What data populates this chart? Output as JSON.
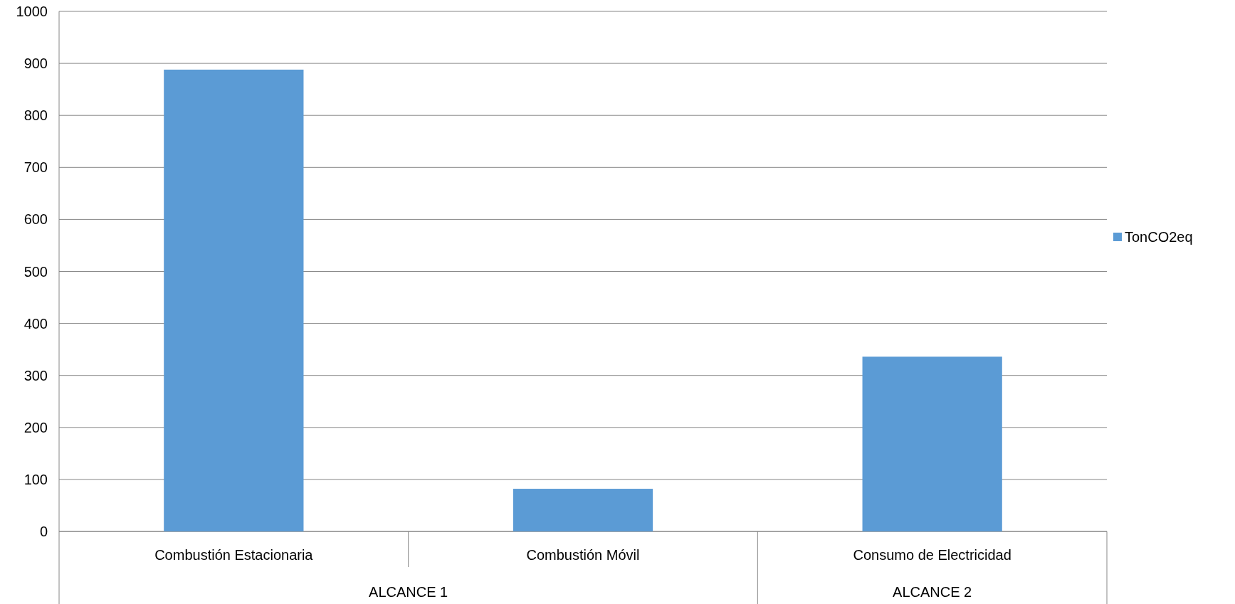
{
  "chart_data": {
    "type": "bar",
    "categories": [
      "Combustión Estacionaria",
      "Combustión Móvil",
      "Consumo de Electricidad"
    ],
    "series": [
      {
        "name": "TonCO2eq",
        "color": "#5b9bd5",
        "values": [
          888,
          82,
          336
        ]
      }
    ],
    "ylim": [
      0,
      1000
    ],
    "yticks": [
      0,
      100,
      200,
      300,
      400,
      500,
      600,
      700,
      800,
      900,
      1000
    ],
    "grid": "y",
    "legend": "right",
    "annotations": [
      "ALCANCE 1",
      "ALCANCE 2"
    ]
  }
}
